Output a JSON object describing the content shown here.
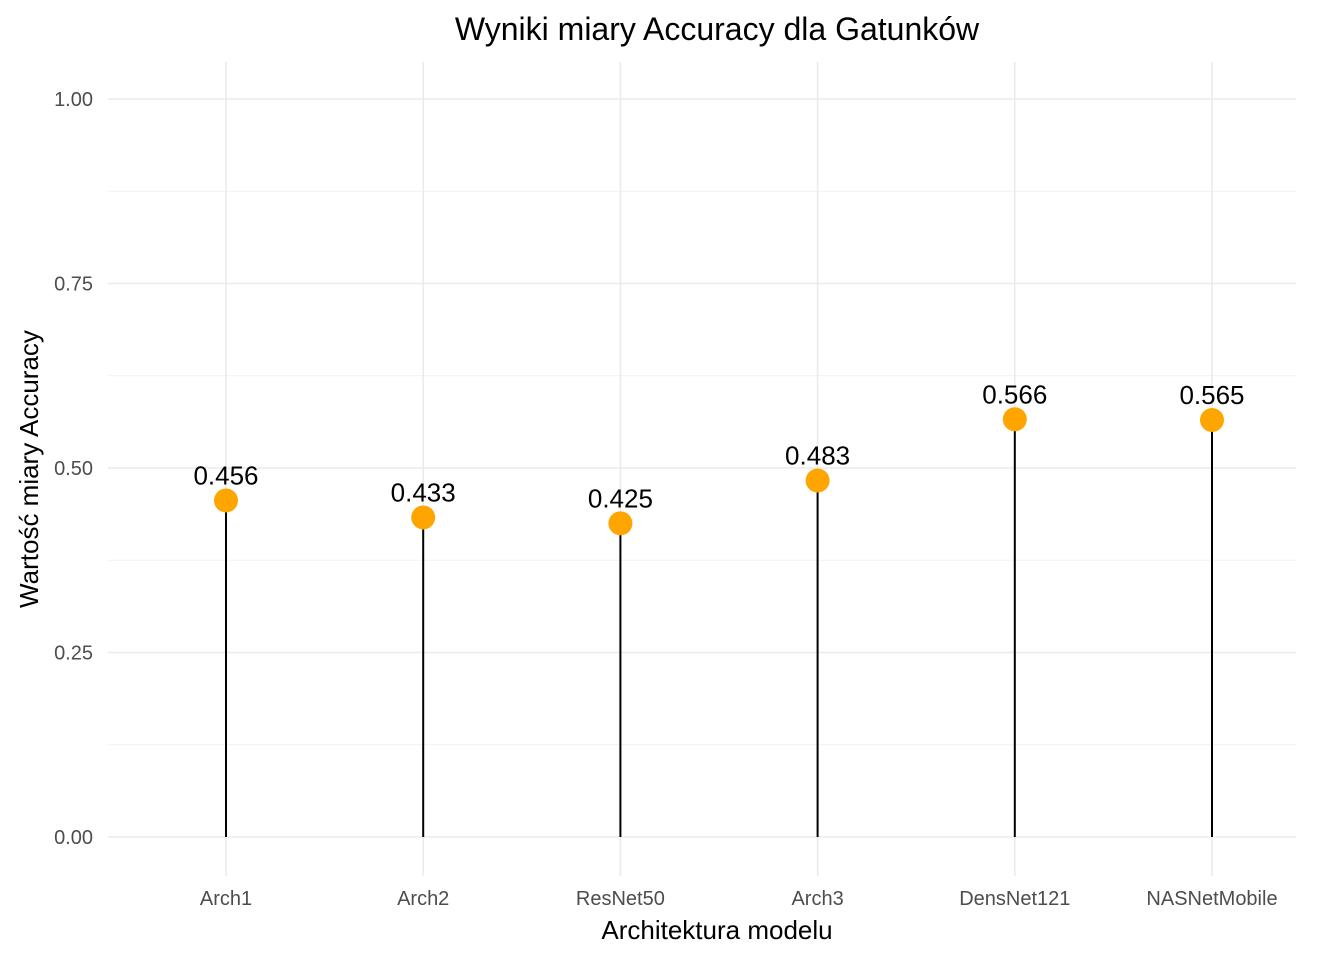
{
  "chart_data": {
    "type": "lollipop",
    "title": "Wyniki miary Accuracy dla Gatunków",
    "xlabel": "Architektura modelu",
    "ylabel": "Wartość miary Accuracy",
    "categories": [
      "Arch1",
      "Arch2",
      "ResNet50",
      "Arch3",
      "DensNet121",
      "NASNetMobile"
    ],
    "values": [
      0.456,
      0.433,
      0.425,
      0.483,
      0.566,
      0.565
    ],
    "data_labels": [
      "0.456",
      "0.433",
      "0.425",
      "0.483",
      "0.566",
      "0.565"
    ],
    "ylim": [
      0,
      1
    ],
    "yticks": [
      0,
      0.25,
      0.5,
      0.75,
      1
    ],
    "ytick_labels": [
      "0.00",
      "0.25",
      "0.50",
      "0.75",
      "1.00"
    ],
    "grid": true,
    "legend": "none",
    "colors": {
      "point": "#FFA500",
      "stem": "#000000",
      "grid": "#EBEBEB"
    }
  }
}
